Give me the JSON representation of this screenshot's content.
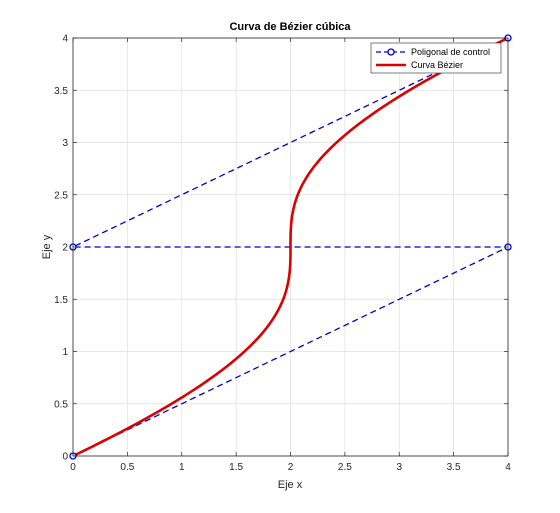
{
  "chart_data": {
    "type": "line",
    "title": "Curva de Bézier cúbica",
    "xlabel": "Eje x",
    "ylabel": "Eje y",
    "xlim": [
      0,
      4
    ],
    "ylim": [
      0,
      4
    ],
    "xticks": [
      0,
      0.5,
      1,
      1.5,
      2,
      2.5,
      3,
      3.5,
      4
    ],
    "xtick_labels": [
      "0",
      "0.5",
      "1",
      "1.5",
      "2",
      "2.5",
      "3",
      "3.5",
      "4"
    ],
    "yticks": [
      0,
      0.5,
      1,
      1.5,
      2,
      2.5,
      3,
      3.5,
      4
    ],
    "ytick_labels": [
      "0",
      "0.5",
      "1",
      "1.5",
      "2",
      "2.5",
      "3",
      "3.5",
      "4"
    ],
    "grid": true,
    "legend_position": "top-right",
    "series": [
      {
        "name": "Poligonal de control",
        "style": "dashed",
        "marker": "circle",
        "color": "#0000cc",
        "x": [
          0,
          4,
          0,
          4
        ],
        "y": [
          0,
          2,
          2,
          4
        ]
      },
      {
        "name": "Curva Bézier",
        "style": "solid",
        "marker": "none",
        "color": "#dd0000",
        "control_points": {
          "x": [
            0,
            4,
            0,
            4
          ],
          "y": [
            0,
            2,
            2,
            4
          ]
        }
      }
    ]
  }
}
